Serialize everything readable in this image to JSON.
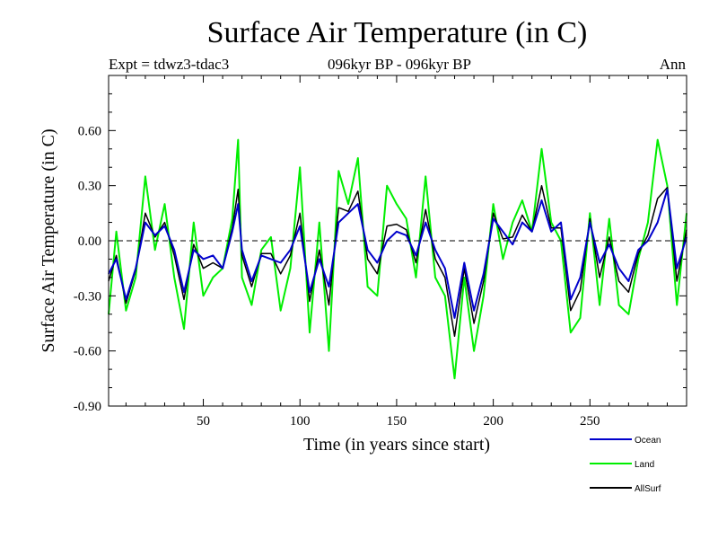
{
  "chart_data": {
    "type": "line",
    "title": "Surface Air Temperature (in C)",
    "subtitle": "096kyr BP - 096kyr BP",
    "header_left": "Expt = tdwz3-tdac3",
    "header_right": "Ann",
    "xlabel": "Time (in years since start)",
    "ylabel": "Surface Air Temperature (in C)",
    "xlim": [
      1,
      300
    ],
    "ylim": [
      -0.9,
      0.9
    ],
    "xticks": [
      50,
      100,
      150,
      200,
      250
    ],
    "yticks": [
      -0.9,
      -0.6,
      -0.3,
      0.0,
      0.3,
      0.6
    ],
    "ytick_labels": [
      "-0.90",
      "-0.60",
      "-0.30",
      "0.00",
      "0.30",
      "0.60"
    ],
    "grid": false,
    "zero_line": "dashed",
    "legend_position": "bottom-right",
    "series": [
      {
        "name": "Ocean",
        "color": "#0000cc",
        "x": [
          1,
          5,
          10,
          15,
          20,
          25,
          30,
          35,
          40,
          45,
          50,
          55,
          60,
          65,
          68,
          70,
          75,
          80,
          85,
          90,
          95,
          100,
          105,
          110,
          115,
          120,
          125,
          130,
          135,
          140,
          145,
          150,
          155,
          160,
          165,
          170,
          175,
          180,
          185,
          190,
          195,
          200,
          205,
          210,
          215,
          220,
          225,
          230,
          235,
          240,
          245,
          250,
          255,
          260,
          265,
          270,
          275,
          280,
          285,
          290,
          295,
          300
        ],
        "y": [
          -0.18,
          -0.1,
          -0.32,
          -0.15,
          0.1,
          0.03,
          0.08,
          -0.05,
          -0.28,
          -0.05,
          -0.1,
          -0.08,
          -0.15,
          0.05,
          0.2,
          -0.05,
          -0.22,
          -0.08,
          -0.1,
          -0.12,
          -0.05,
          0.08,
          -0.28,
          -0.1,
          -0.25,
          0.1,
          0.15,
          0.2,
          -0.05,
          -0.12,
          0.0,
          0.05,
          0.03,
          -0.08,
          0.1,
          -0.05,
          -0.15,
          -0.42,
          -0.12,
          -0.38,
          -0.18,
          0.12,
          0.05,
          -0.02,
          0.1,
          0.05,
          0.22,
          0.05,
          0.1,
          -0.32,
          -0.2,
          0.1,
          -0.12,
          -0.02,
          -0.15,
          -0.22,
          -0.05,
          0.0,
          0.1,
          0.28,
          -0.15,
          0.02
        ]
      },
      {
        "name": "Land",
        "color": "#00ee00",
        "x": [
          1,
          5,
          10,
          15,
          20,
          25,
          30,
          35,
          40,
          45,
          50,
          55,
          60,
          65,
          68,
          70,
          75,
          80,
          85,
          90,
          95,
          100,
          105,
          110,
          115,
          120,
          125,
          130,
          135,
          140,
          145,
          150,
          155,
          160,
          165,
          170,
          175,
          180,
          185,
          190,
          195,
          200,
          205,
          210,
          215,
          220,
          225,
          230,
          235,
          240,
          245,
          250,
          255,
          260,
          265,
          270,
          275,
          280,
          285,
          290,
          295,
          300
        ],
        "y": [
          -0.4,
          0.05,
          -0.38,
          -0.2,
          0.35,
          -0.05,
          0.2,
          -0.2,
          -0.48,
          0.1,
          -0.3,
          -0.2,
          -0.15,
          0.12,
          0.55,
          -0.2,
          -0.35,
          -0.05,
          0.02,
          -0.38,
          -0.15,
          0.4,
          -0.5,
          0.1,
          -0.6,
          0.38,
          0.2,
          0.45,
          -0.25,
          -0.3,
          0.3,
          0.2,
          0.12,
          -0.2,
          0.35,
          -0.2,
          -0.3,
          -0.75,
          -0.2,
          -0.6,
          -0.3,
          0.2,
          -0.1,
          0.1,
          0.22,
          0.05,
          0.5,
          0.1,
          0.0,
          -0.5,
          -0.42,
          0.15,
          -0.35,
          0.12,
          -0.35,
          -0.4,
          -0.1,
          0.1,
          0.55,
          0.3,
          -0.35,
          0.15
        ]
      },
      {
        "name": "AllSurf",
        "color": "#000000",
        "x": [
          1,
          5,
          10,
          15,
          20,
          25,
          30,
          35,
          40,
          45,
          50,
          55,
          60,
          65,
          68,
          70,
          75,
          80,
          85,
          90,
          95,
          100,
          105,
          110,
          115,
          120,
          125,
          130,
          135,
          140,
          145,
          150,
          155,
          160,
          165,
          170,
          175,
          180,
          185,
          190,
          195,
          200,
          205,
          210,
          215,
          220,
          225,
          230,
          235,
          240,
          245,
          250,
          255,
          260,
          265,
          270,
          275,
          280,
          285,
          290,
          295,
          300
        ],
        "y": [
          -0.22,
          -0.08,
          -0.34,
          -0.16,
          0.15,
          0.02,
          0.1,
          -0.08,
          -0.32,
          -0.02,
          -0.15,
          -0.12,
          -0.15,
          0.07,
          0.28,
          -0.08,
          -0.25,
          -0.07,
          -0.07,
          -0.18,
          -0.08,
          0.15,
          -0.33,
          -0.05,
          -0.35,
          0.18,
          0.16,
          0.27,
          -0.1,
          -0.18,
          0.08,
          0.09,
          0.06,
          -0.12,
          0.17,
          -0.1,
          -0.2,
          -0.52,
          -0.15,
          -0.45,
          -0.22,
          0.15,
          0.01,
          0.02,
          0.14,
          0.05,
          0.3,
          0.07,
          0.07,
          -0.38,
          -0.27,
          0.12,
          -0.2,
          0.02,
          -0.22,
          -0.28,
          -0.07,
          0.03,
          0.23,
          0.29,
          -0.22,
          0.06
        ]
      }
    ]
  }
}
